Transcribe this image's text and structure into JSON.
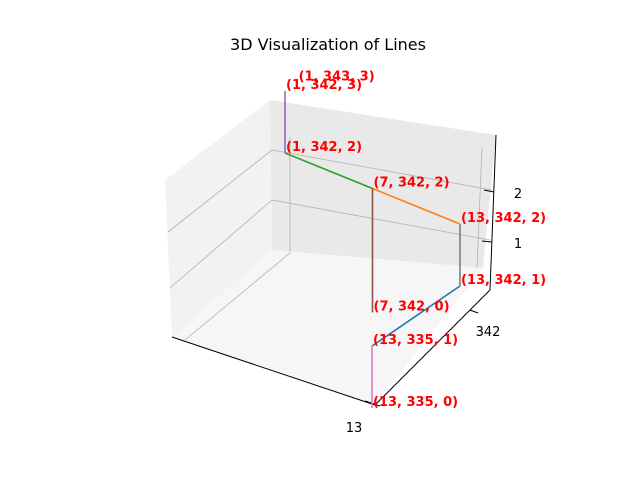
{
  "chart_data": {
    "type": "line",
    "projection": "3d",
    "title": "3D Visualization of Lines",
    "xlabel": "",
    "ylabel": "",
    "zlabel": "",
    "grid": true,
    "x_ticks": [
      "13"
    ],
    "y_ticks": [
      "342"
    ],
    "z_ticks": [
      "1",
      "2"
    ],
    "series": [
      {
        "color": "#1f77b4",
        "points": [
          [
            13,
            335,
            1
          ],
          [
            13,
            342,
            1
          ]
        ]
      },
      {
        "color": "#ff7f0e",
        "points": [
          [
            7,
            342,
            2
          ],
          [
            13,
            342,
            2
          ]
        ]
      },
      {
        "color": "#2ca02c",
        "points": [
          [
            1,
            342,
            2
          ],
          [
            7,
            342,
            2
          ]
        ]
      },
      {
        "color": "#9467bd",
        "points": [
          [
            1,
            342,
            2
          ],
          [
            1,
            342,
            3
          ]
        ]
      },
      {
        "color": "#8c564b",
        "points": [
          [
            7,
            342,
            0
          ],
          [
            7,
            342,
            2
          ]
        ]
      },
      {
        "color": "#e377c2",
        "points": [
          [
            13,
            335,
            0
          ],
          [
            13,
            335,
            1
          ]
        ]
      },
      {
        "color": "#7f7f7f",
        "points": [
          [
            13,
            342,
            1
          ],
          [
            13,
            342,
            2
          ]
        ]
      }
    ],
    "point_labels": [
      {
        "text": "(1, 343, 3)"
      },
      {
        "text": "(1, 342, 3)"
      },
      {
        "text": "(1, 342, 2)"
      },
      {
        "text": "(7, 342, 2)"
      },
      {
        "text": "(13, 342, 2)"
      },
      {
        "text": "(13, 342, 1)"
      },
      {
        "text": "(7, 342, 0)"
      },
      {
        "text": "(13, 335, 1)"
      },
      {
        "text": "(13, 335, 0)"
      }
    ],
    "label_color": "#ff0000"
  }
}
